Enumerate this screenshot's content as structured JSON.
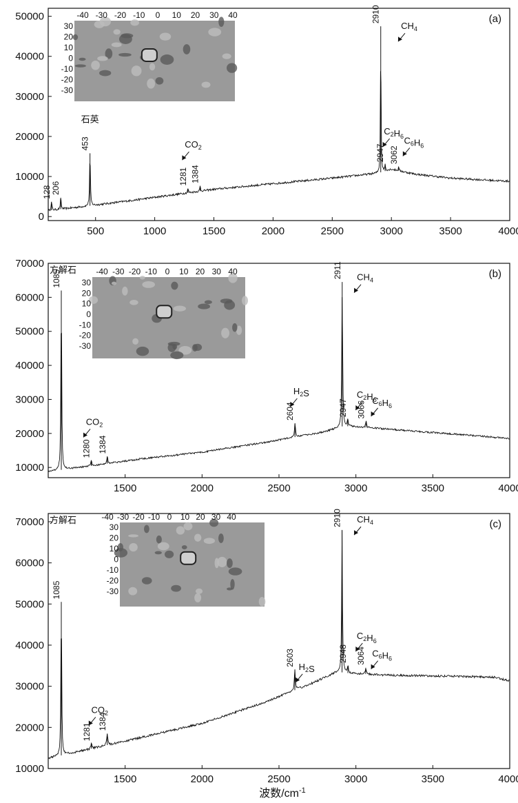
{
  "chart_data": [
    {
      "type": "line",
      "panel_label": "(a)",
      "mineral_label": "",
      "xlim": [
        100,
        4000
      ],
      "ylim": [
        -1000,
        52000
      ],
      "yticks": [
        0,
        10000,
        20000,
        30000,
        40000,
        50000
      ],
      "xticks": [
        500,
        1000,
        1500,
        2000,
        2500,
        3000,
        3500,
        4000
      ],
      "baseline": [
        [
          100,
          1500
        ],
        [
          400,
          2500
        ],
        [
          800,
          4000
        ],
        [
          1500,
          6800
        ],
        [
          2000,
          8200
        ],
        [
          2500,
          9600
        ],
        [
          2880,
          10800
        ],
        [
          3000,
          11800
        ],
        [
          3200,
          10600
        ],
        [
          3500,
          9600
        ],
        [
          4000,
          8800
        ]
      ],
      "peaks": [
        {
          "x": 128,
          "y": 3700,
          "label": "128"
        },
        {
          "x": 206,
          "y": 4700,
          "label": "206"
        },
        {
          "x": 453,
          "y": 15800,
          "label": "453"
        },
        {
          "x": 1281,
          "y": 7000,
          "label": "1281"
        },
        {
          "x": 1384,
          "y": 7600,
          "label": "1384"
        },
        {
          "x": 2910,
          "y": 47500,
          "label": "2910"
        },
        {
          "x": 2947,
          "y": 12900,
          "label": "2947"
        },
        {
          "x": 3062,
          "y": 12400,
          "label": "3062"
        }
      ],
      "annotations": [
        {
          "text": "石英",
          "x": 453,
          "y": 23500
        },
        {
          "text": "CO2",
          "x": 1325,
          "y": 17200
        },
        {
          "text": "CH4",
          "x": 3150,
          "y": 46800
        },
        {
          "text": "C2H6",
          "x": 3020,
          "y": 20500
        },
        {
          "text": "C6H6",
          "x": 3190,
          "y": 18200
        }
      ],
      "inset_ticks_x": [
        "-40",
        "-30",
        "-20",
        "-10",
        "0",
        "10",
        "20",
        "30",
        "40"
      ],
      "inset_ticks_y": [
        "30",
        "20",
        "10",
        "0",
        "-10",
        "-20",
        "-30"
      ]
    },
    {
      "type": "line",
      "panel_label": "(b)",
      "mineral_label": "方解石",
      "xlim": [
        1000,
        4000
      ],
      "ylim": [
        7000,
        70000
      ],
      "yticks": [
        10000,
        20000,
        30000,
        40000,
        50000,
        60000,
        70000
      ],
      "xticks": [
        1500,
        2000,
        2500,
        3000,
        3500,
        4000
      ],
      "baseline": [
        [
          1000,
          8800
        ],
        [
          1300,
          10600
        ],
        [
          1600,
          12500
        ],
        [
          2000,
          14500
        ],
        [
          2400,
          17300
        ],
        [
          2800,
          20500
        ],
        [
          2920,
          22200
        ],
        [
          3050,
          21800
        ],
        [
          3400,
          20600
        ],
        [
          3700,
          19600
        ],
        [
          4000,
          18500
        ]
      ],
      "peaks": [
        {
          "x": 1085,
          "y": 62000,
          "label": "1085"
        },
        {
          "x": 1280,
          "y": 12000,
          "label": "1280"
        },
        {
          "x": 1384,
          "y": 13200,
          "label": "1384"
        },
        {
          "x": 2604,
          "y": 23000,
          "label": "2604"
        },
        {
          "x": 2911,
          "y": 64500,
          "label": "2911"
        },
        {
          "x": 2947,
          "y": 24000,
          "label": "2947"
        },
        {
          "x": 3066,
          "y": 23500,
          "label": "3066"
        }
      ],
      "annotations": [
        {
          "text": "CO2",
          "x": 1300,
          "y": 22500
        },
        {
          "text": "H2S",
          "x": 2645,
          "y": 31500
        },
        {
          "text": "CH4",
          "x": 3060,
          "y": 65000
        },
        {
          "text": "C2H6",
          "x": 3070,
          "y": 30500
        },
        {
          "text": "C6H6",
          "x": 3170,
          "y": 28700
        }
      ],
      "inset_ticks_x": [
        "-40",
        "-30",
        "-20",
        "-10",
        "0",
        "10",
        "20",
        "30",
        "40"
      ],
      "inset_ticks_y": [
        "30",
        "20",
        "10",
        "0",
        "-10",
        "-20",
        "-30"
      ]
    },
    {
      "type": "line",
      "panel_label": "(c)",
      "mineral_label": "方解石",
      "xlim": [
        1000,
        4000
      ],
      "ylim": [
        10000,
        72000
      ],
      "yticks": [
        10000,
        20000,
        30000,
        40000,
        50000,
        60000,
        70000
      ],
      "xticks": [
        1500,
        2000,
        2500,
        3000,
        3500,
        4000
      ],
      "baseline": [
        [
          1000,
          12500
        ],
        [
          1300,
          15000
        ],
        [
          1600,
          17500
        ],
        [
          2000,
          21000
        ],
        [
          2400,
          26000
        ],
        [
          2700,
          30500
        ],
        [
          2880,
          33500
        ],
        [
          2950,
          33200
        ],
        [
          3200,
          32700
        ],
        [
          3700,
          32400
        ],
        [
          3900,
          32200
        ],
        [
          4000,
          31300
        ]
      ],
      "peaks": [
        {
          "x": 1085,
          "y": 50500,
          "label": "1085"
        },
        {
          "x": 1281,
          "y": 16000,
          "label": "1281"
        },
        {
          "x": 1384,
          "y": 18500,
          "label": "1384"
        },
        {
          "x": 2603,
          "y": 34000,
          "label": "2603"
        },
        {
          "x": 2910,
          "y": 68000,
          "label": "2910"
        },
        {
          "x": 2948,
          "y": 35000,
          "label": "2948"
        },
        {
          "x": 3064,
          "y": 34500,
          "label": "3064"
        }
      ],
      "annotations": [
        {
          "text": "CO2",
          "x": 1335,
          "y": 23500
        },
        {
          "text": "H2S",
          "x": 2680,
          "y": 34000
        },
        {
          "text": "CH4",
          "x": 3060,
          "y": 69800
        },
        {
          "text": "C2H6",
          "x": 3070,
          "y": 41500
        },
        {
          "text": "C6H6",
          "x": 3170,
          "y": 37200
        }
      ],
      "inset_ticks_x": [
        "-40",
        "-30",
        "-20",
        "-10",
        "0",
        "10",
        "20",
        "30",
        "40"
      ],
      "inset_ticks_y": [
        "30",
        "20",
        "10",
        "0",
        "-10",
        "-20",
        "-30"
      ]
    }
  ],
  "xlabel": "波数/cm",
  "xlabel_exponent": "-1"
}
